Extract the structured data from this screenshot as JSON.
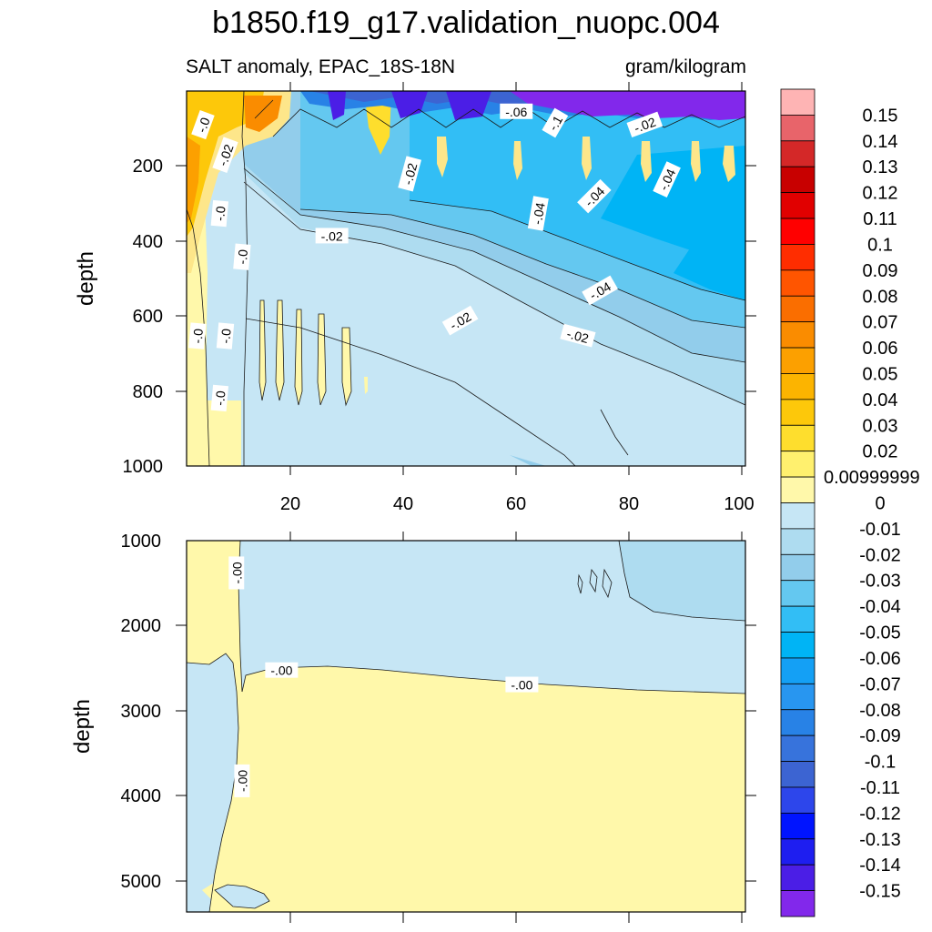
{
  "title": "b1850.f19_g17.validation_nuopc.004",
  "subtitle_left": "SALT anomaly, EPAC_18S-18N",
  "subtitle_right": "gram/kilogram",
  "colors": {
    "axis": "#000000",
    "contour_line": "#1a1a1a"
  },
  "chart_data": [
    {
      "type": "heatmap",
      "panel": "upper",
      "title": "",
      "xlabel": "",
      "ylabel": "depth",
      "xlim": [
        1,
        101
      ],
      "ylim": [
        1000,
        5
      ],
      "y_reversed": true,
      "x_ticks": [
        "20",
        "40",
        "60",
        "80",
        "100"
      ],
      "y_ticks": [
        "200",
        "400",
        "600",
        "800",
        "1000"
      ],
      "contour_labels": [
        {
          "text": "-.0",
          "x": 4,
          "y": 95,
          "angle": -70
        },
        {
          "text": "-.02",
          "x": 8,
          "y": 175,
          "angle": -70
        },
        {
          "text": "-.02",
          "x": 27,
          "y": 390,
          "angle": 0
        },
        {
          "text": "-.0",
          "x": 7,
          "y": 330,
          "angle": -85
        },
        {
          "text": "-.0",
          "x": 11,
          "y": 445,
          "angle": -85
        },
        {
          "text": "-.0",
          "x": 3,
          "y": 655,
          "angle": -85
        },
        {
          "text": "-.0",
          "x": 8,
          "y": 655,
          "angle": -85
        },
        {
          "text": "-.0",
          "x": 7,
          "y": 820,
          "angle": -85
        },
        {
          "text": "-.02",
          "x": 41,
          "y": 225,
          "angle": -75
        },
        {
          "text": "-.06",
          "x": 60,
          "y": 60,
          "angle": 0
        },
        {
          "text": "-.1",
          "x": 67,
          "y": 90,
          "angle": -60
        },
        {
          "text": "-.02",
          "x": 83,
          "y": 95,
          "angle": -20
        },
        {
          "text": "-.04",
          "x": 64,
          "y": 330,
          "angle": -80
        },
        {
          "text": "-.04",
          "x": 74,
          "y": 285,
          "angle": -45
        },
        {
          "text": "-.04",
          "x": 87,
          "y": 240,
          "angle": -65
        },
        {
          "text": "-.04",
          "x": 75,
          "y": 535,
          "angle": -30
        },
        {
          "text": "-.02",
          "x": 50,
          "y": 615,
          "angle": -30
        },
        {
          "text": "-.02",
          "x": 71,
          "y": 655,
          "angle": 15
        }
      ]
    },
    {
      "type": "heatmap",
      "panel": "lower",
      "title": "",
      "xlabel": "",
      "ylabel": "depth",
      "xlim": [
        1,
        101
      ],
      "ylim": [
        5375,
        1000
      ],
      "y_reversed": true,
      "x_ticks": [
        "20",
        "40",
        "60",
        "80",
        "100"
      ],
      "y_ticks": [
        "1000",
        "2000",
        "3000",
        "4000",
        "5000"
      ],
      "contour_labels": [
        {
          "text": "-.00",
          "x": 10,
          "y": 1380,
          "angle": -90
        },
        {
          "text": "-.00",
          "x": 18,
          "y": 2530,
          "angle": 0
        },
        {
          "text": "-.00",
          "x": 61,
          "y": 2700,
          "angle": 0
        },
        {
          "text": "-.00",
          "x": 11,
          "y": 3830,
          "angle": -90
        }
      ]
    }
  ],
  "colorbar": {
    "labels": [
      "0.15",
      "0.14",
      "0.13",
      "0.12",
      "0.11",
      "0.1",
      "0.09",
      "0.08",
      "0.07",
      "0.06",
      "0.05",
      "0.04",
      "0.03",
      "0.02",
      "0.00999999",
      "0",
      "-0.01",
      "-0.02",
      "-0.03",
      "-0.04",
      "-0.05",
      "-0.06",
      "-0.07",
      "-0.08",
      "-0.09",
      "-0.1",
      "-0.11",
      "-0.12",
      "-0.13",
      "-0.14",
      "-0.15"
    ],
    "colors": [
      "#feb4b4",
      "#e8646a",
      "#d42828",
      "#c80000",
      "#e10000",
      "#ff0000",
      "#ff2d00",
      "#ff5500",
      "#fa6e00",
      "#fa8c00",
      "#fca000",
      "#fcb400",
      "#fdc80a",
      "#fede2d",
      "#fff06e",
      "#fff8aa",
      "#c6e6f5",
      "#aedcf0",
      "#92cdeb",
      "#64c8f0",
      "#32bef5",
      "#00b4f5",
      "#14a0f5",
      "#2896f0",
      "#2882e6",
      "#3773dc",
      "#3c64d2",
      "#2d46eb",
      "#0014ff",
      "#1e1ef0",
      "#4b1ee6",
      "#8228eb"
    ]
  }
}
